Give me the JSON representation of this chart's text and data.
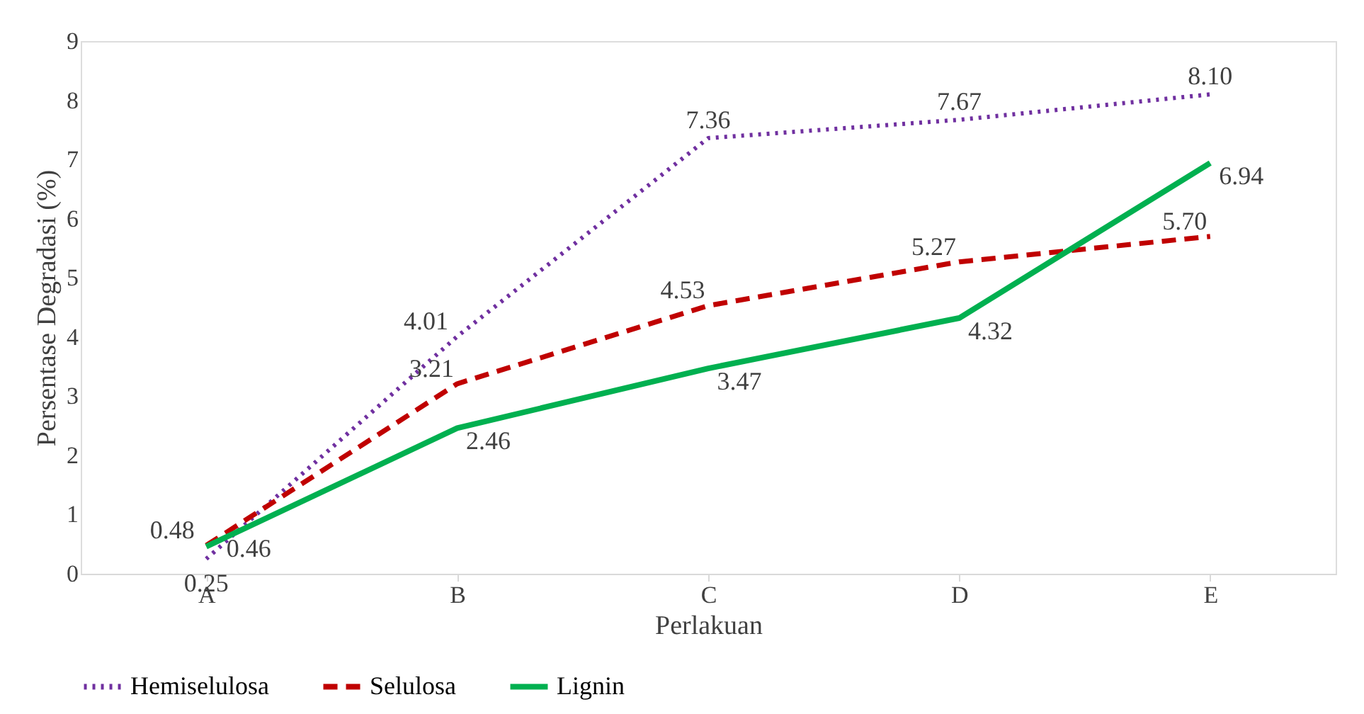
{
  "chart_data": {
    "type": "line",
    "xlabel": "Perlakuan",
    "ylabel": "Persentase Degradasi (%)",
    "categories": [
      "A",
      "B",
      "C",
      "D",
      "E"
    ],
    "series": [
      {
        "name": "Hemiselulosa",
        "color": "#7030a0",
        "line_style": "dotted",
        "values": [
          0.25,
          4.01,
          7.36,
          7.67,
          8.1
        ],
        "value_labels": [
          "0.25",
          "4.01",
          "7.36",
          "7.67",
          "8.10"
        ]
      },
      {
        "name": "Selulosa",
        "color": "#c00000",
        "line_style": "dashed",
        "values": [
          0.48,
          3.21,
          4.53,
          5.27,
          5.7
        ],
        "value_labels": [
          "0.48",
          "3.21",
          "4.53",
          "5.27",
          "5.70"
        ]
      },
      {
        "name": "Lignin",
        "color": "#00b050",
        "line_style": "solid",
        "values": [
          0.46,
          2.46,
          3.47,
          4.32,
          6.94
        ],
        "value_labels": [
          "0.46",
          "2.46",
          "3.47",
          "4.32",
          "6.94"
        ]
      }
    ],
    "ylim": [
      0,
      9
    ],
    "yticks": [
      0,
      1,
      2,
      3,
      4,
      5,
      6,
      7,
      8,
      9
    ],
    "legend": "bottom",
    "grid": false,
    "marker": "none"
  }
}
